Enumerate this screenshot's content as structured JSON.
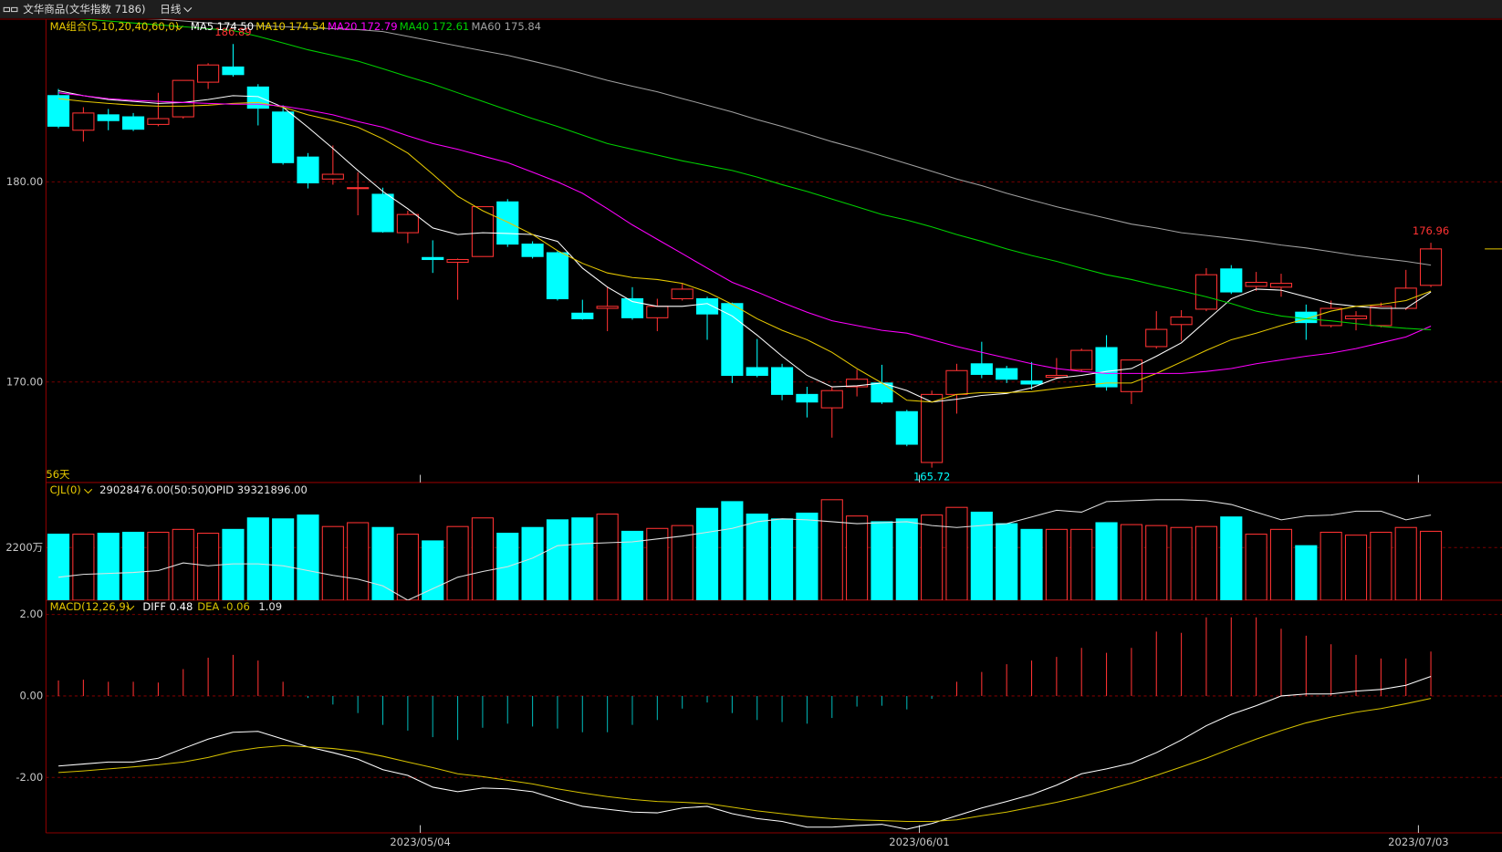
{
  "header": {
    "symbol": "文华商品(文华指数 7186)",
    "period": "日线"
  },
  "chart_data": [
    {
      "type": "candlestick",
      "title": "MA组合(5,10,20,40,60,0)",
      "annotation": "56天",
      "grid": true,
      "up_color": "#ff3232",
      "down_color": "#00ffff",
      "categories": [
        null,
        null,
        null,
        null,
        null,
        null,
        null,
        null,
        null,
        null,
        null,
        null,
        null,
        null,
        null,
        "2023/05/04",
        null,
        null,
        null,
        null,
        null,
        null,
        null,
        null,
        null,
        null,
        null,
        null,
        null,
        null,
        null,
        null,
        null,
        null,
        null,
        "2023/06/01",
        null,
        null,
        null,
        null,
        null,
        null,
        null,
        null,
        null,
        null,
        null,
        null,
        null,
        null,
        null,
        null,
        null,
        null,
        null,
        "2023/07/03"
      ],
      "open": [
        184.31,
        182.58,
        183.35,
        183.25,
        182.87,
        183.25,
        184.98,
        185.74,
        184.74,
        183.49,
        181.24,
        180.14,
        179.67,
        179.38,
        177.46,
        176.22,
        175.98,
        176.27,
        179.0,
        176.89,
        176.46,
        173.44,
        173.68,
        174.16,
        173.21,
        174.16,
        174.16,
        173.92,
        170.72,
        170.72,
        169.38,
        168.71,
        169.76,
        169.95,
        168.52,
        165.98,
        169.38,
        170.91,
        170.67,
        170.05,
        170.24,
        170.62,
        171.72,
        169.52,
        171.77,
        172.87,
        173.64,
        175.65,
        174.78,
        174.74,
        173.49,
        172.82,
        173.16,
        172.82,
        173.68,
        174.83
      ],
      "high": [
        184.64,
        183.73,
        183.64,
        183.44,
        184.45,
        185.07,
        185.93,
        186.89,
        184.88,
        183.83,
        181.44,
        181.82,
        180.48,
        179.71,
        178.56,
        177.08,
        176.17,
        178.76,
        179.14,
        177.03,
        176.56,
        174.11,
        174.74,
        174.74,
        174.16,
        174.93,
        174.26,
        173.97,
        172.15,
        170.91,
        169.76,
        169.76,
        170.62,
        170.86,
        168.61,
        169.57,
        170.91,
        172.01,
        170.81,
        171.0,
        171.2,
        171.67,
        172.34,
        171.1,
        173.54,
        173.59,
        175.69,
        175.84,
        175.5,
        175.41,
        173.87,
        174.07,
        173.54,
        173.97,
        175.6,
        176.96
      ],
      "low": [
        182.68,
        182.01,
        182.58,
        182.54,
        182.78,
        183.16,
        184.64,
        185.26,
        182.82,
        180.86,
        179.67,
        179.86,
        178.33,
        177.46,
        176.94,
        175.45,
        174.11,
        176.27,
        176.75,
        176.17,
        174.07,
        173.11,
        172.54,
        173.11,
        172.54,
        174.07,
        172.11,
        169.95,
        170.24,
        169.09,
        168.23,
        167.22,
        169.28,
        168.9,
        166.79,
        165.72,
        168.42,
        170.19,
        169.95,
        169.62,
        170.14,
        170.53,
        169.57,
        168.9,
        171.67,
        172.06,
        173.54,
        174.4,
        174.55,
        174.26,
        172.11,
        172.73,
        172.58,
        172.73,
        173.59,
        174.74
      ],
      "close": [
        182.78,
        183.44,
        183.06,
        182.63,
        183.16,
        185.07,
        185.84,
        185.36,
        183.68,
        180.96,
        179.95,
        180.38,
        179.71,
        177.51,
        178.37,
        176.12,
        176.12,
        178.76,
        176.89,
        176.27,
        174.16,
        173.16,
        173.78,
        173.21,
        173.78,
        174.64,
        173.4,
        170.33,
        170.33,
        169.38,
        169.0,
        169.57,
        170.14,
        169.0,
        166.89,
        169.38,
        170.57,
        170.38,
        170.14,
        169.9,
        170.33,
        171.58,
        169.76,
        171.1,
        172.63,
        173.25,
        175.36,
        174.5,
        174.98,
        174.93,
        172.97,
        173.68,
        173.3,
        173.78,
        174.69,
        176.65
      ],
      "series": [
        {
          "name": "MA5",
          "color": "#ffffff",
          "values": [
            184.55,
            184.31,
            184.11,
            184.02,
            183.92,
            183.97,
            184.11,
            184.31,
            184.26,
            183.73,
            182.73,
            181.67,
            180.57,
            179.52,
            178.66,
            177.7,
            177.37,
            177.46,
            177.42,
            177.37,
            177.03,
            175.69,
            174.74,
            174.02,
            173.78,
            173.78,
            173.92,
            173.3,
            172.34,
            171.29,
            170.33,
            169.76,
            169.81,
            169.95,
            169.57,
            169.0,
            169.14,
            169.33,
            169.43,
            169.71,
            170.19,
            170.33,
            170.53,
            170.67,
            171.29,
            171.96,
            173.06,
            174.16,
            174.64,
            174.59,
            174.26,
            173.92,
            173.78,
            173.68,
            173.68,
            174.5
          ]
        },
        {
          "name": "MA10",
          "color": "#e6c800",
          "values": [
            184.16,
            184.02,
            183.92,
            183.83,
            183.78,
            183.78,
            183.83,
            183.92,
            183.97,
            183.73,
            183.35,
            183.06,
            182.73,
            182.15,
            181.44,
            180.38,
            179.28,
            178.56,
            177.99,
            177.37,
            176.56,
            175.93,
            175.45,
            175.22,
            175.12,
            174.93,
            174.5,
            173.88,
            173.16,
            172.58,
            172.11,
            171.48,
            170.67,
            169.95,
            169.09,
            169.0,
            169.38,
            169.47,
            169.47,
            169.52,
            169.67,
            169.81,
            169.95,
            169.95,
            170.43,
            171.0,
            171.58,
            172.11,
            172.44,
            172.82,
            173.16,
            173.54,
            173.78,
            173.88,
            174.07,
            174.54
          ]
        },
        {
          "name": "MA20",
          "color": "#ff00ff",
          "values": [
            184.45,
            184.31,
            184.16,
            184.07,
            184.02,
            183.97,
            183.92,
            183.88,
            183.88,
            183.78,
            183.59,
            183.35,
            183.01,
            182.73,
            182.3,
            181.91,
            181.63,
            181.29,
            180.96,
            180.48,
            180.0,
            179.43,
            178.66,
            177.85,
            177.13,
            176.41,
            175.69,
            174.98,
            174.5,
            173.97,
            173.49,
            173.06,
            172.82,
            172.58,
            172.44,
            172.11,
            171.77,
            171.48,
            171.2,
            170.91,
            170.67,
            170.53,
            170.43,
            170.43,
            170.43,
            170.43,
            170.53,
            170.67,
            170.91,
            171.1,
            171.29,
            171.44,
            171.67,
            171.96,
            172.25,
            172.79
          ]
        },
        {
          "name": "MA40",
          "color": "#00d000",
          "values": [
            188.23,
            188.13,
            188.04,
            187.94,
            187.85,
            187.75,
            187.65,
            187.56,
            187.27,
            186.94,
            186.6,
            186.32,
            186.03,
            185.65,
            185.26,
            184.88,
            184.45,
            184.02,
            183.59,
            183.16,
            182.77,
            182.34,
            181.91,
            181.63,
            181.34,
            181.05,
            180.81,
            180.57,
            180.24,
            179.86,
            179.52,
            179.14,
            178.76,
            178.37,
            178.09,
            177.75,
            177.37,
            177.03,
            176.65,
            176.32,
            176.03,
            175.69,
            175.36,
            175.12,
            174.83,
            174.55,
            174.26,
            173.92,
            173.54,
            173.3,
            173.16,
            173.06,
            172.92,
            172.78,
            172.68,
            172.61
          ]
        },
        {
          "name": "MA60",
          "color": "#a0a0a0",
          "values": [
            188.42,
            188.33,
            188.23,
            188.18,
            188.13,
            188.04,
            187.94,
            187.85,
            187.8,
            187.75,
            187.7,
            187.65,
            187.61,
            187.51,
            187.27,
            187.03,
            186.79,
            186.55,
            186.32,
            186.03,
            185.74,
            185.41,
            185.07,
            184.78,
            184.5,
            184.16,
            183.83,
            183.49,
            183.11,
            182.77,
            182.39,
            182.01,
            181.67,
            181.29,
            180.91,
            180.53,
            180.14,
            179.81,
            179.43,
            179.09,
            178.76,
            178.47,
            178.18,
            177.89,
            177.7,
            177.46,
            177.32,
            177.18,
            177.03,
            176.84,
            176.7,
            176.51,
            176.32,
            176.17,
            176.03,
            175.84
          ]
        }
      ],
      "ylim": [
        164.98,
        188.13
      ],
      "yticks": [
        {
          "value": 170,
          "label": "170.00"
        },
        {
          "value": 180,
          "label": "180.00"
        }
      ]
    },
    {
      "type": "bar",
      "title": "CJL(0)",
      "readout": [
        "29028476.00(50:50)",
        "OPID 39321896.00"
      ],
      "grid": true,
      "values": [
        2760,
        2760,
        2800,
        2840,
        2840,
        2960,
        2800,
        2960,
        3440,
        3400,
        3560,
        3080,
        3240,
        3040,
        2760,
        2480,
        3080,
        3440,
        2800,
        3040,
        3360,
        3440,
        3600,
        2880,
        3000,
        3120,
        3840,
        4120,
        3600,
        3400,
        3640,
        4200,
        3520,
        3280,
        3400,
        3560,
        3880,
        3680,
        3200,
        2960,
        2960,
        2960,
        3240,
        3160,
        3120,
        3040,
        3080,
        3480,
        2760,
        2960,
        2280,
        2840,
        2720,
        2840,
        3040,
        2880
      ],
      "series": [
        {
          "color": "#e0e0e0",
          "values": [
            960,
            1080,
            1120,
            1160,
            1240,
            1560,
            1440,
            1520,
            1520,
            1440,
            1240,
            1040,
            880,
            600,
            0,
            480,
            960,
            1200,
            1400,
            1760,
            2280,
            2360,
            2400,
            2440,
            2560,
            2680,
            2840,
            3000,
            3280,
            3400,
            3360,
            3280,
            3200,
            3240,
            3280,
            3120,
            3040,
            3120,
            3200,
            3480,
            3760,
            3680,
            4120,
            4160,
            4200,
            4200,
            4160,
            4000,
            3680,
            3360,
            3520,
            3560,
            3720,
            3720,
            3360,
            3560
          ]
        }
      ],
      "ylim": [
        0,
        4920
      ],
      "yticks": [
        {
          "value": 2200,
          "label": "2200万"
        }
      ]
    },
    {
      "type": "macd",
      "title": "MACD(12,26,9)",
      "grid": true,
      "up_color": "#ff3232",
      "down_color": "#00b4b4",
      "values": [
        0.38,
        0.4,
        0.35,
        0.35,
        0.33,
        0.66,
        0.94,
        1.01,
        0.87,
        0.35,
        -0.05,
        -0.21,
        -0.42,
        -0.71,
        -0.85,
        -1.01,
        -1.08,
        -0.78,
        -0.68,
        -0.75,
        -0.8,
        -0.89,
        -0.89,
        -0.71,
        -0.59,
        -0.31,
        -0.16,
        -0.42,
        -0.59,
        -0.64,
        -0.68,
        -0.54,
        -0.26,
        -0.24,
        -0.33,
        -0.07,
        0.35,
        0.59,
        0.78,
        0.87,
        0.96,
        1.18,
        1.06,
        1.18,
        1.58,
        1.55,
        1.93,
        1.93,
        1.93,
        1.65,
        1.48,
        1.27,
        1.01,
        0.92,
        0.92,
        1.09
      ],
      "series": [
        {
          "name": "DIFF",
          "color": "#ffffff",
          "values": [
            -1.72,
            -1.67,
            -1.62,
            -1.62,
            -1.53,
            -1.29,
            -1.06,
            -0.89,
            -0.87,
            -1.06,
            -1.25,
            -1.39,
            -1.55,
            -1.81,
            -1.95,
            -2.24,
            -2.35,
            -2.26,
            -2.28,
            -2.35,
            -2.54,
            -2.71,
            -2.78,
            -2.85,
            -2.87,
            -2.75,
            -2.71,
            -2.89,
            -3.01,
            -3.08,
            -3.22,
            -3.22,
            -3.18,
            -3.15,
            -3.27,
            -3.13,
            -2.94,
            -2.75,
            -2.59,
            -2.42,
            -2.19,
            -1.91,
            -1.79,
            -1.65,
            -1.39,
            -1.08,
            -0.73,
            -0.45,
            -0.24,
            0.0,
            0.05,
            0.05,
            0.12,
            0.16,
            0.26,
            0.48
          ]
        },
        {
          "name": "DEA",
          "color": "#d4c000",
          "values": [
            -1.88,
            -1.84,
            -1.79,
            -1.74,
            -1.69,
            -1.62,
            -1.51,
            -1.36,
            -1.27,
            -1.22,
            -1.25,
            -1.29,
            -1.36,
            -1.48,
            -1.62,
            -1.76,
            -1.91,
            -1.98,
            -2.07,
            -2.16,
            -2.28,
            -2.38,
            -2.47,
            -2.54,
            -2.59,
            -2.61,
            -2.64,
            -2.73,
            -2.82,
            -2.89,
            -2.96,
            -3.01,
            -3.04,
            -3.06,
            -3.08,
            -3.08,
            -3.04,
            -2.94,
            -2.85,
            -2.73,
            -2.61,
            -2.47,
            -2.31,
            -2.14,
            -1.95,
            -1.74,
            -1.53,
            -1.29,
            -1.06,
            -0.85,
            -0.66,
            -0.52,
            -0.4,
            -0.31,
            -0.19,
            -0.06
          ]
        }
      ],
      "ylim": [
        -3.36,
        2.35
      ],
      "yticks": [
        {
          "value": 2,
          "label": "2.00"
        },
        {
          "value": 0,
          "label": "0.00"
        },
        {
          "value": -2,
          "label": "-2.00"
        }
      ]
    }
  ]
}
